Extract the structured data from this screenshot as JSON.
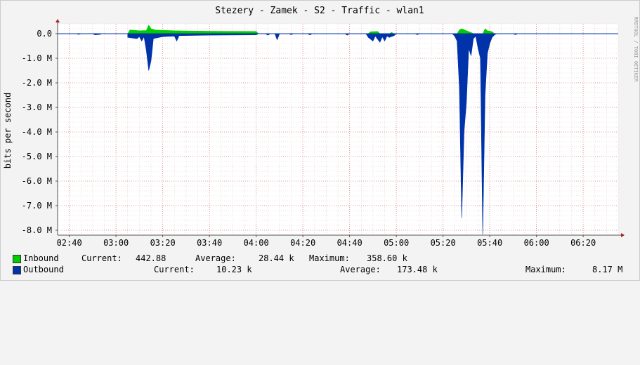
{
  "chart_data": {
    "type": "area",
    "title": "Stezery - Zamek - S2 - Traffic - wlan1",
    "ylabel": "bits per second",
    "xlabel": "",
    "side_label": "RRDTOOL / TOBI OETIKER",
    "x_ticks": [
      "02:40",
      "03:00",
      "03:20",
      "03:40",
      "04:00",
      "04:20",
      "04:40",
      "05:00",
      "05:20",
      "05:40",
      "06:00",
      "06:20"
    ],
    "y_ticks": [
      "0.0",
      "-1.0 M",
      "-2.0 M",
      "-3.0 M",
      "-4.0 M",
      "-5.0 M",
      "-6.0 M",
      "-7.0 M",
      "-8.0 M"
    ],
    "ylim": [
      -8200000,
      400000
    ],
    "xlim": [
      "02:35",
      "06:35"
    ],
    "grid": true,
    "series": [
      {
        "name": "Inbound",
        "color": "#00cc00",
        "current_label": "Current:",
        "current": "442.88",
        "average_label": "Average:",
        "average": "28.44 k",
        "maximum_label": "Maximum:",
        "maximum": "358.60 k",
        "points": [
          [
            "03:05",
            0
          ],
          [
            "03:06",
            150000
          ],
          [
            "03:10",
            120000
          ],
          [
            "03:13",
            130000
          ],
          [
            "03:14",
            350000
          ],
          [
            "03:15",
            200000
          ],
          [
            "03:17",
            150000
          ],
          [
            "03:25",
            120000
          ],
          [
            "03:40",
            100000
          ],
          [
            "04:00",
            90000
          ],
          [
            "04:01",
            0
          ],
          [
            "04:48",
            0
          ],
          [
            "04:49",
            80000
          ],
          [
            "04:52",
            90000
          ],
          [
            "04:53",
            0
          ],
          [
            "04:57",
            0
          ],
          [
            "04:58",
            50000
          ],
          [
            "04:59",
            0
          ],
          [
            "05:26",
            0
          ],
          [
            "05:27",
            150000
          ],
          [
            "05:28",
            200000
          ],
          [
            "05:30",
            120000
          ],
          [
            "05:32",
            50000
          ],
          [
            "05:33",
            0
          ],
          [
            "05:37",
            0
          ],
          [
            "05:38",
            200000
          ],
          [
            "05:39",
            120000
          ],
          [
            "05:41",
            80000
          ],
          [
            "05:42",
            0
          ]
        ]
      },
      {
        "name": "Outbound",
        "color": "#0033aa",
        "current_label": "Current:",
        "current": "10.23 k",
        "average_label": "Average:",
        "average": "173.48 k",
        "maximum_label": "Maximum:",
        "maximum": "8.17 M",
        "points": [
          [
            "02:35",
            0
          ],
          [
            "02:43",
            0
          ],
          [
            "02:44",
            -30000
          ],
          [
            "02:45",
            0
          ],
          [
            "02:50",
            0
          ],
          [
            "02:51",
            -50000
          ],
          [
            "02:53",
            -30000
          ],
          [
            "02:54",
            0
          ],
          [
            "03:05",
            0
          ],
          [
            "03:05",
            -150000
          ],
          [
            "03:09",
            -200000
          ],
          [
            "03:10",
            -120000
          ],
          [
            "03:11",
            -300000
          ],
          [
            "03:12",
            -120000
          ],
          [
            "03:13",
            -700000
          ],
          [
            "03:14",
            -1500000
          ],
          [
            "03:15",
            -1100000
          ],
          [
            "03:16",
            -200000
          ],
          [
            "03:20",
            -120000
          ],
          [
            "03:25",
            -100000
          ],
          [
            "03:26",
            -300000
          ],
          [
            "03:27",
            -80000
          ],
          [
            "03:40",
            -60000
          ],
          [
            "04:00",
            -50000
          ],
          [
            "04:01",
            0
          ],
          [
            "04:04",
            0
          ],
          [
            "04:05",
            -60000
          ],
          [
            "04:06",
            0
          ],
          [
            "04:08",
            0
          ],
          [
            "04:09",
            -250000
          ],
          [
            "04:10",
            0
          ],
          [
            "04:14",
            0
          ],
          [
            "04:15",
            -40000
          ],
          [
            "04:16",
            0
          ],
          [
            "04:22",
            0
          ],
          [
            "04:23",
            -50000
          ],
          [
            "04:24",
            0
          ],
          [
            "04:38",
            0
          ],
          [
            "04:39",
            -60000
          ],
          [
            "04:40",
            0
          ],
          [
            "04:47",
            0
          ],
          [
            "04:48",
            -150000
          ],
          [
            "04:50",
            -300000
          ],
          [
            "04:51",
            -100000
          ],
          [
            "04:53",
            -350000
          ],
          [
            "04:54",
            -120000
          ],
          [
            "04:55",
            -300000
          ],
          [
            "04:56",
            -100000
          ],
          [
            "04:57",
            -150000
          ],
          [
            "04:59",
            -80000
          ],
          [
            "05:00",
            0
          ],
          [
            "05:08",
            0
          ],
          [
            "05:09",
            -40000
          ],
          [
            "05:10",
            0
          ],
          [
            "05:24",
            0
          ],
          [
            "05:25",
            -100000
          ],
          [
            "05:26",
            -300000
          ],
          [
            "05:27",
            -2200000
          ],
          [
            "05:28",
            -7500000
          ],
          [
            "05:29",
            -4000000
          ],
          [
            "05:30",
            -2800000
          ],
          [
            "05:31",
            -600000
          ],
          [
            "05:32",
            -900000
          ],
          [
            "05:33",
            -200000
          ],
          [
            "05:34",
            -100000
          ],
          [
            "05:35",
            -600000
          ],
          [
            "05:36",
            -1000000
          ],
          [
            "05:37",
            -8170000
          ],
          [
            "05:38",
            -2500000
          ],
          [
            "05:39",
            -800000
          ],
          [
            "05:40",
            -400000
          ],
          [
            "05:41",
            -150000
          ],
          [
            "05:42",
            -50000
          ],
          [
            "05:43",
            0
          ],
          [
            "05:50",
            0
          ],
          [
            "05:51",
            -40000
          ],
          [
            "05:52",
            0
          ],
          [
            "06:35",
            0
          ]
        ]
      }
    ]
  }
}
